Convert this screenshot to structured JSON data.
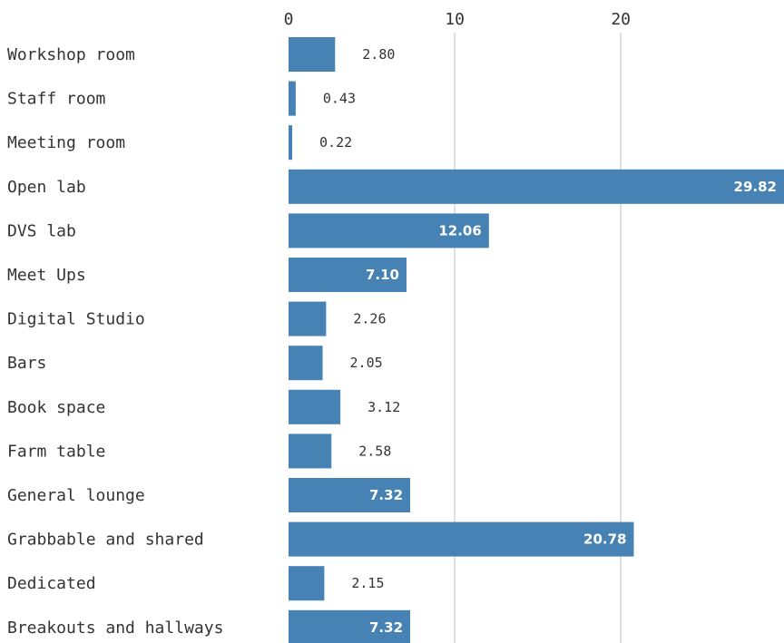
{
  "chart_data": {
    "type": "bar",
    "orientation": "horizontal",
    "categories": [
      "Workshop room",
      "Staff room",
      "Meeting room",
      "Open lab",
      "DVS lab",
      "Meet Ups",
      "Digital Studio",
      "Bars",
      "Book space",
      "Farm table",
      "General lounge",
      "Grabbable and shared",
      "Dedicated",
      "Breakouts and hallways"
    ],
    "values": [
      2.8,
      0.43,
      0.22,
      29.82,
      12.06,
      7.1,
      2.26,
      2.05,
      3.12,
      2.58,
      7.32,
      20.78,
      2.15,
      7.32
    ],
    "value_labels": [
      "2.80",
      "0.43",
      "0.22",
      "29.82",
      "12.06",
      "7.10",
      "2.26",
      "2.05",
      "3.12",
      "2.58",
      "7.32",
      "20.78",
      "2.15",
      "7.32"
    ],
    "xlim": [
      0,
      29.82
    ],
    "x_ticks": [
      0,
      10,
      20
    ],
    "x_tick_labels": [
      "0",
      "10",
      "20"
    ],
    "axis_position": "top",
    "grid": true,
    "bar_color": "#4682b4"
  }
}
